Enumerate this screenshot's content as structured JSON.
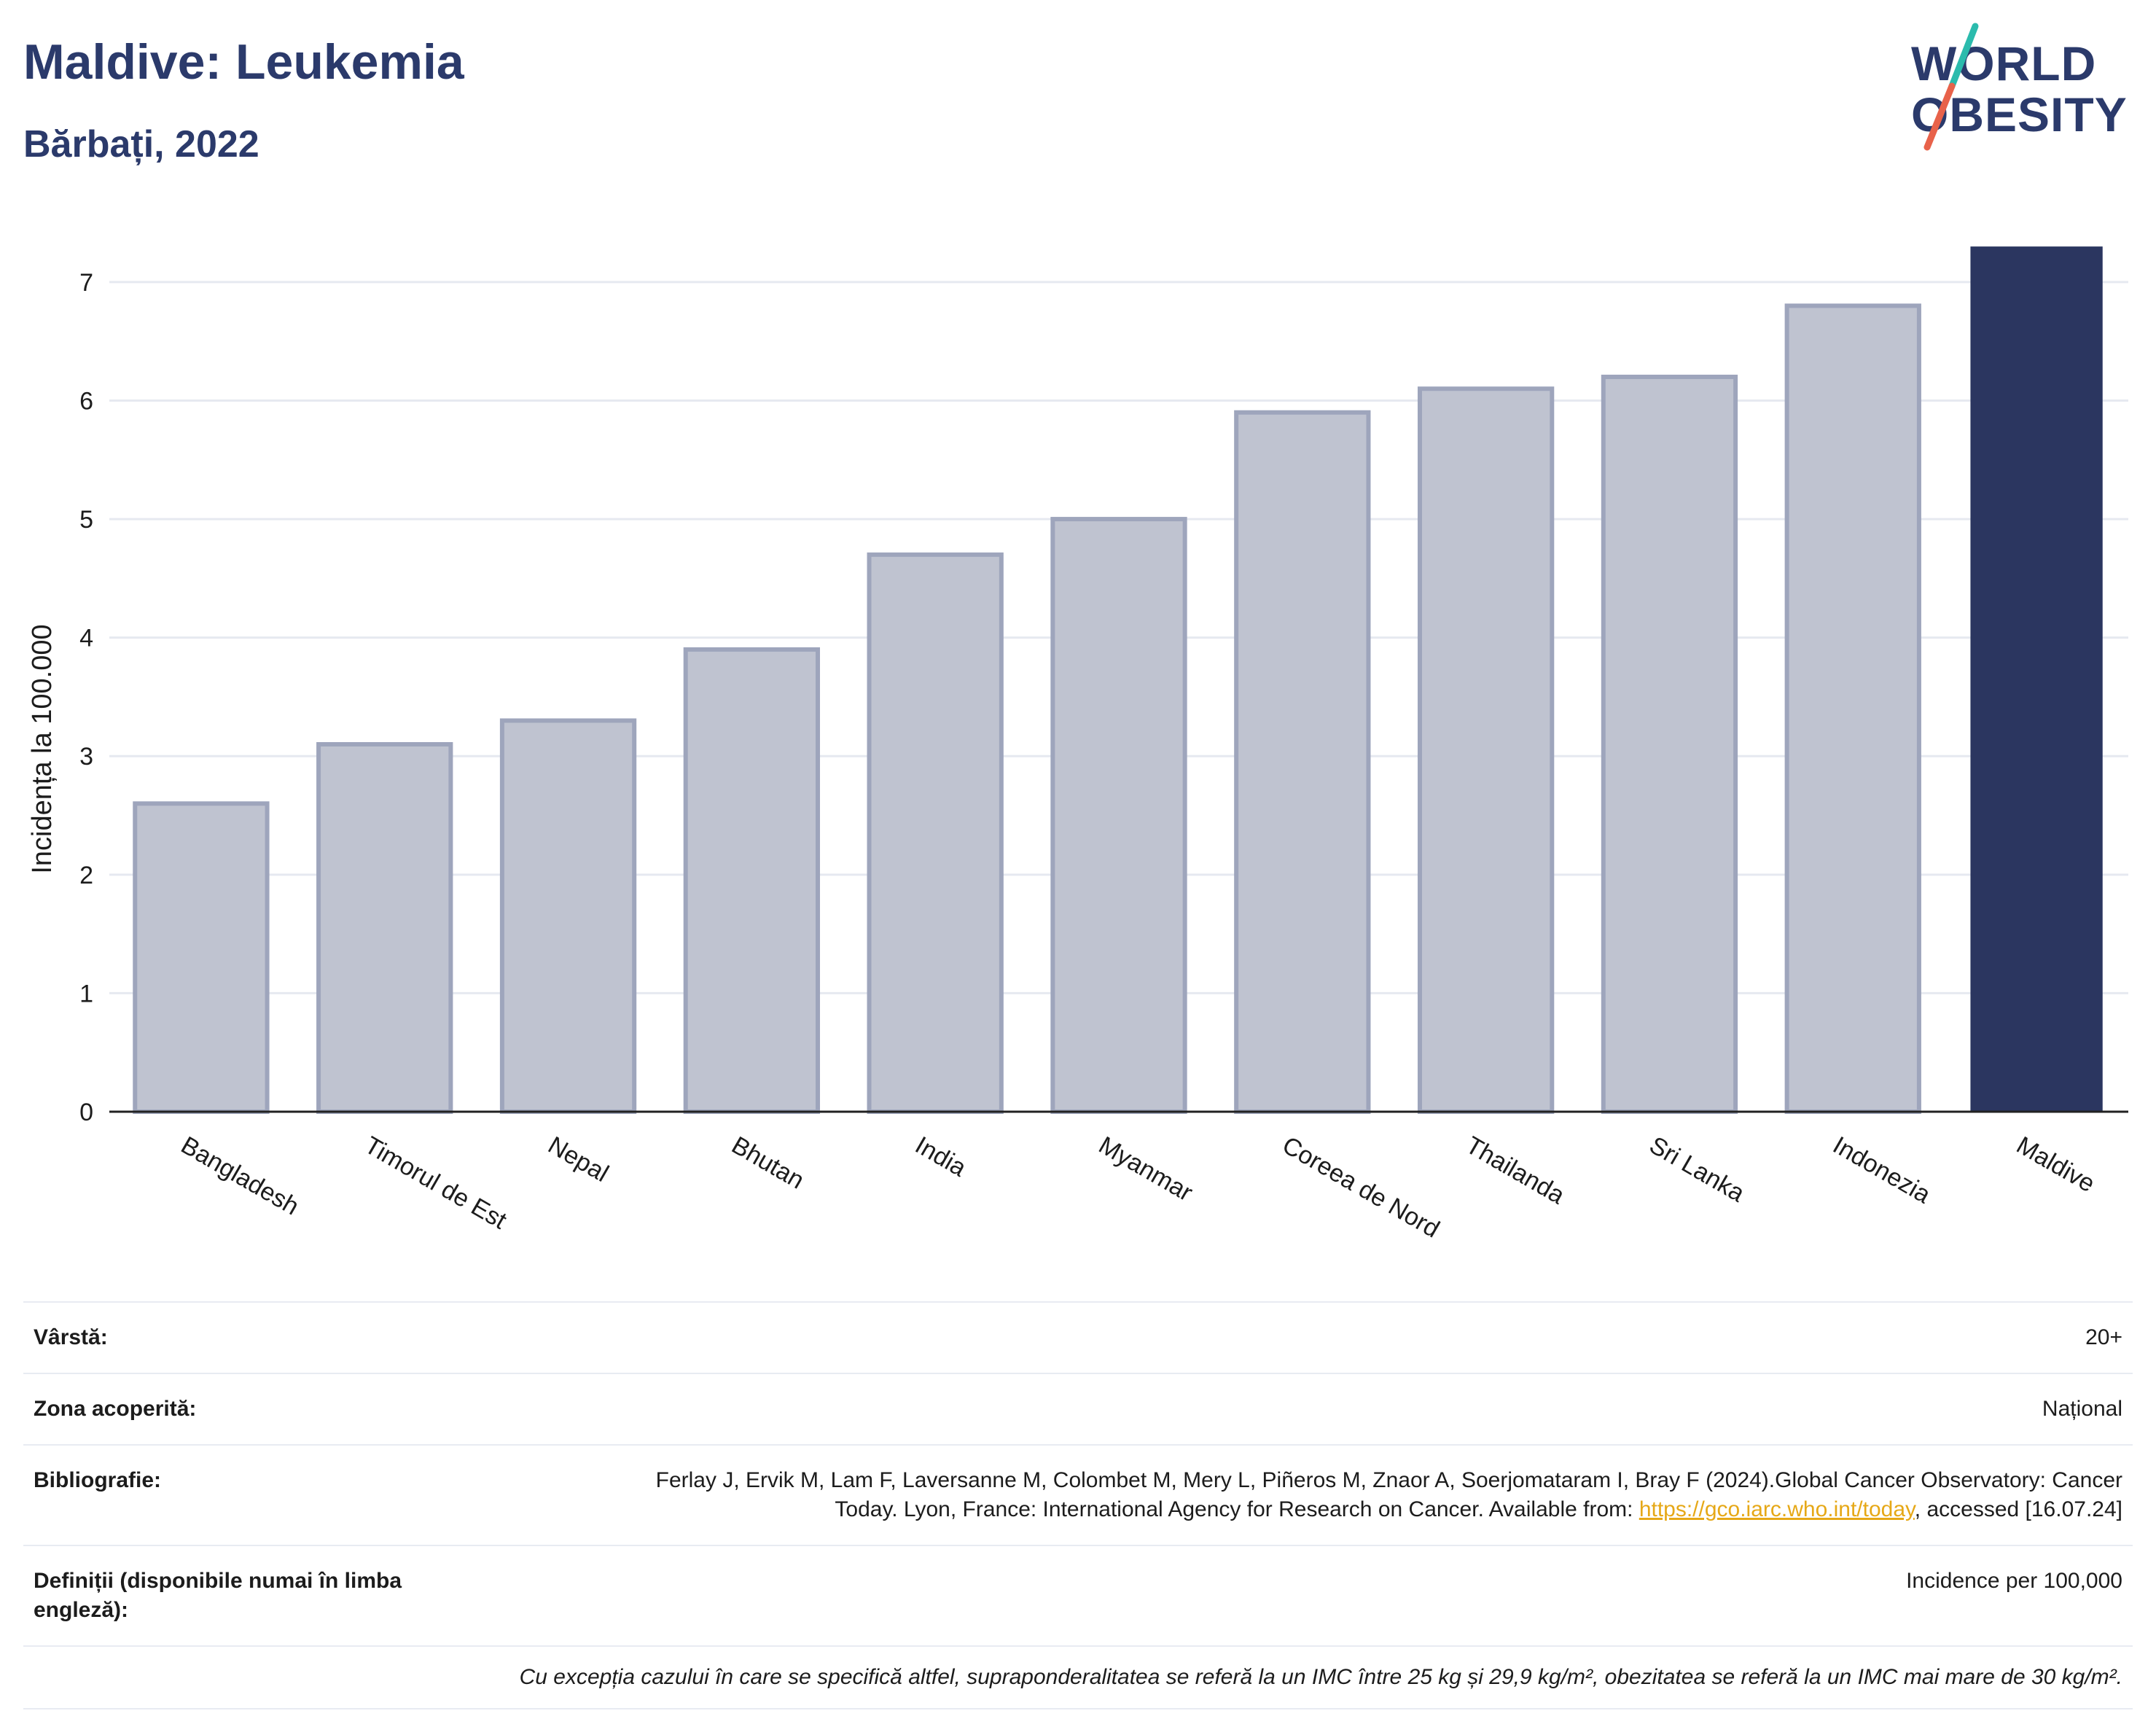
{
  "header": {
    "title": "Maldive: Leukemia",
    "subtitle": "Bărbați, 2022"
  },
  "logo": {
    "line1": "WORLD",
    "line2": "OBESITY",
    "slash_colors": [
      "#2bbbad",
      "#e8624a"
    ]
  },
  "chart_data": {
    "type": "bar",
    "categories": [
      "Bangladesh",
      "Timorul de Est",
      "Nepal",
      "Bhutan",
      "India",
      "Myanmar",
      "Coreea de Nord",
      "Thailanda",
      "Sri Lanka",
      "Indonezia",
      "Maldive"
    ],
    "values": [
      2.6,
      3.1,
      3.3,
      3.9,
      4.7,
      5.0,
      5.9,
      6.1,
      6.2,
      6.8,
      7.3
    ],
    "highlight": "Maldive",
    "ylabel": "Incidența la 100.000",
    "xlabel": "",
    "ylim": [
      0,
      7.35
    ],
    "yticks": [
      0,
      1,
      2,
      3,
      4,
      5,
      6,
      7
    ],
    "grid": true,
    "colors": {
      "bar": "#bfc3d0",
      "bar_border": "#9ea5bc",
      "highlight": "#2b3660",
      "grid": "#e6e9f0",
      "axis": "#222222"
    }
  },
  "info": {
    "rows": [
      {
        "label": "Vârstă:",
        "value": "20+"
      },
      {
        "label": "Zona acoperită:",
        "value": "Național"
      },
      {
        "label": "Bibliografie:",
        "value_pre": "Ferlay J, Ervik M, Lam F, Laversanne M, Colombet M, Mery L, Piñeros M, Znaor A, Soerjomataram I, Bray F (2024).Global Cancer Observatory: Cancer Today. Lyon, France: International Agency for Research on Cancer. Available from: ",
        "link": "https://gco.iarc.who.int/today",
        "value_post": ", accessed [16.07.24]"
      },
      {
        "label": "Definiții (disponibile numai în limba engleză):",
        "value": "Incidence per 100,000"
      }
    ],
    "note": "Cu excepția cazului în care se specifică altfel, supraponderalitatea se referă la un IMC între 25 kg și 29,9 kg/m², obezitatea se referă la un IMC mai mare de 30 kg/m²."
  }
}
